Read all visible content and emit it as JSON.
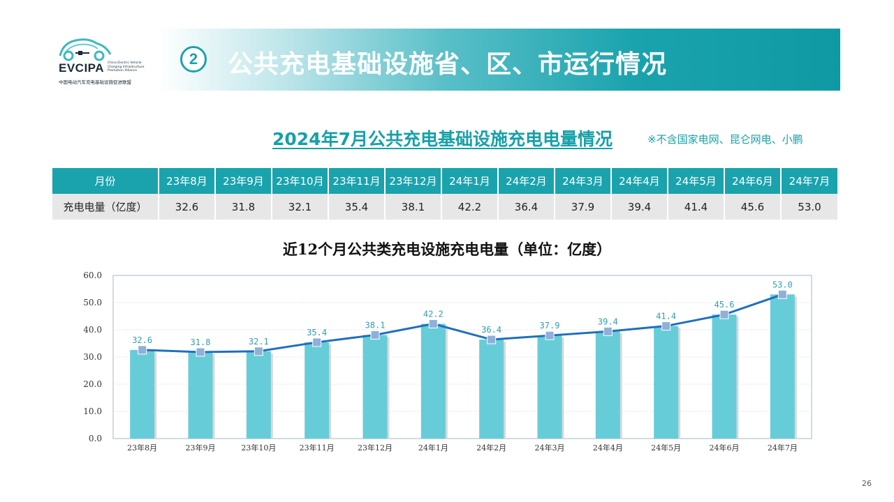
{
  "logo": {
    "brand": "EVCIPA",
    "brand_en": "China Electric Vehicle Charging Infrastructure Promotion Alliance",
    "brand_cn": "中国电动汽车充电基础设施促进联盟"
  },
  "header": {
    "section_number": "2",
    "title": "公共充电基础设施省、区、市运行情况",
    "banner_color": "#1aa3ad"
  },
  "subtitle": "2024年7月公共充电基础设施充电电量情况",
  "note": "※不含国家电网、昆仑网电、小鹏",
  "table": {
    "header_label": "月份",
    "row_label": "充电电量（亿度）",
    "months": [
      "23年8月",
      "23年9月",
      "23年10月",
      "23年11月",
      "23年12月",
      "24年1月",
      "24年2月",
      "24年3月",
      "24年4月",
      "24年5月",
      "24年6月",
      "24年7月"
    ],
    "values": [
      "32.6",
      "31.8",
      "32.1",
      "35.4",
      "38.1",
      "42.2",
      "36.4",
      "37.9",
      "39.4",
      "41.4",
      "45.6",
      "53.0"
    ]
  },
  "chart_data": {
    "type": "bar",
    "title": "近12个月公共类充电设施充电电量（单位：亿度）",
    "categories": [
      "23年8月",
      "23年9月",
      "23年10月",
      "23年11月",
      "23年12月",
      "24年1月",
      "24年2月",
      "24年3月",
      "24年4月",
      "24年5月",
      "24年6月",
      "24年7月"
    ],
    "series": [
      {
        "type": "bar",
        "values": [
          32.6,
          31.8,
          32.1,
          35.4,
          38.1,
          42.2,
          36.4,
          37.9,
          39.4,
          41.4,
          45.6,
          53.0
        ],
        "color": "#66cdd8"
      },
      {
        "type": "line",
        "values": [
          32.6,
          31.8,
          32.1,
          35.4,
          38.1,
          42.2,
          36.4,
          37.9,
          39.4,
          41.4,
          45.6,
          53.0
        ],
        "color": "#1f6fbe"
      }
    ],
    "data_labels": [
      "32.6",
      "31.8",
      "32.1",
      "35.4",
      "38.1",
      "42.2",
      "36.4",
      "37.9",
      "39.4",
      "41.4",
      "45.6",
      "53.0"
    ],
    "yticks": [
      "0.0",
      "10.0",
      "20.0",
      "30.0",
      "40.0",
      "50.0",
      "60.0"
    ],
    "ylim": [
      0,
      60
    ],
    "grid": true
  },
  "page_number": "26"
}
